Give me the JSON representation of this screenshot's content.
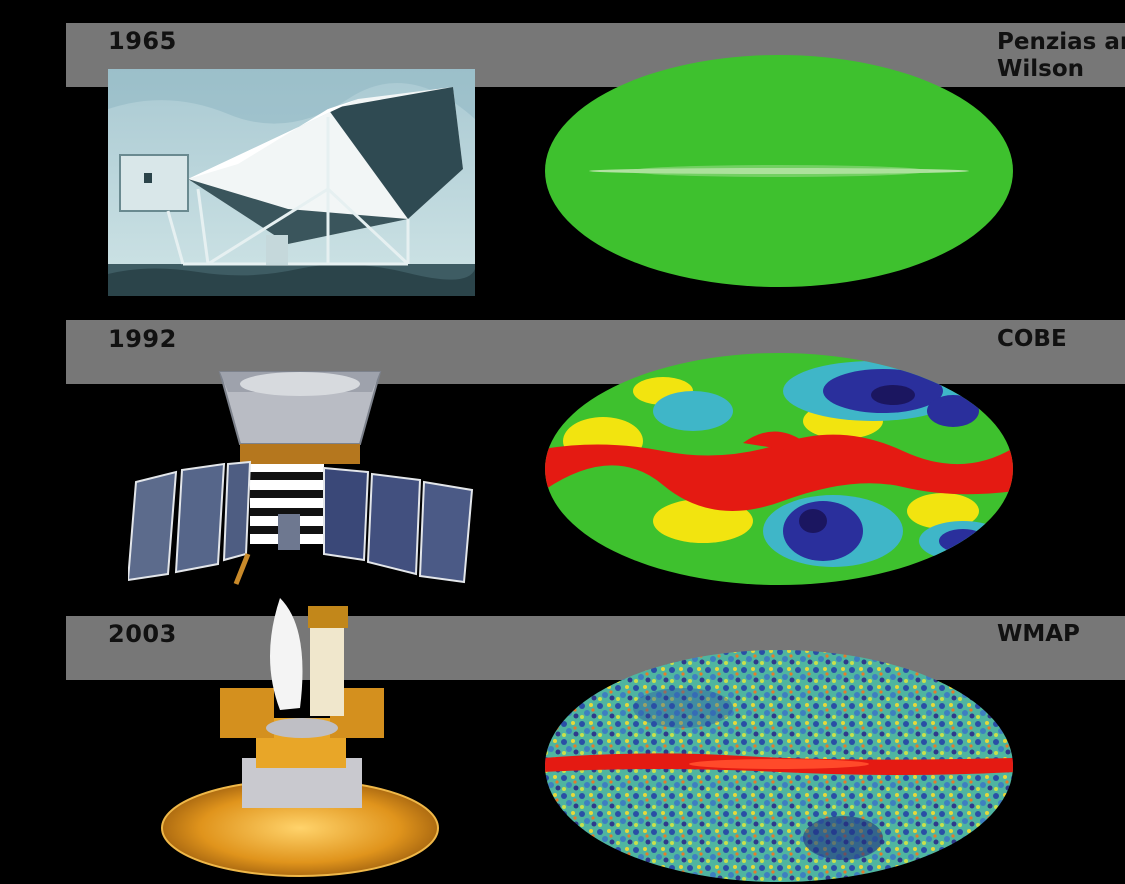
{
  "rows": [
    {
      "year": "1965",
      "name_line1": "Penzias and",
      "name_line2": "Wilson",
      "instrument": "horn-antenna-photo",
      "map": "uniform-green-sky-map"
    },
    {
      "year": "1992",
      "name_line1": "COBE",
      "instrument": "cobe-satellite",
      "map": "cobe-anisotropy-map"
    },
    {
      "year": "2003",
      "name_line1": "WMAP",
      "instrument": "wmap-satellite",
      "map": "wmap-anisotropy-map"
    }
  ],
  "colors": {
    "background": "#000000",
    "band": "#777777",
    "label_text": "#111111",
    "map_green": "#3ec12e",
    "map_red": "#e41a12",
    "map_blue": "#2a2f9c",
    "map_yellow": "#f2e40f",
    "map_cyan": "#3fb6c8"
  }
}
